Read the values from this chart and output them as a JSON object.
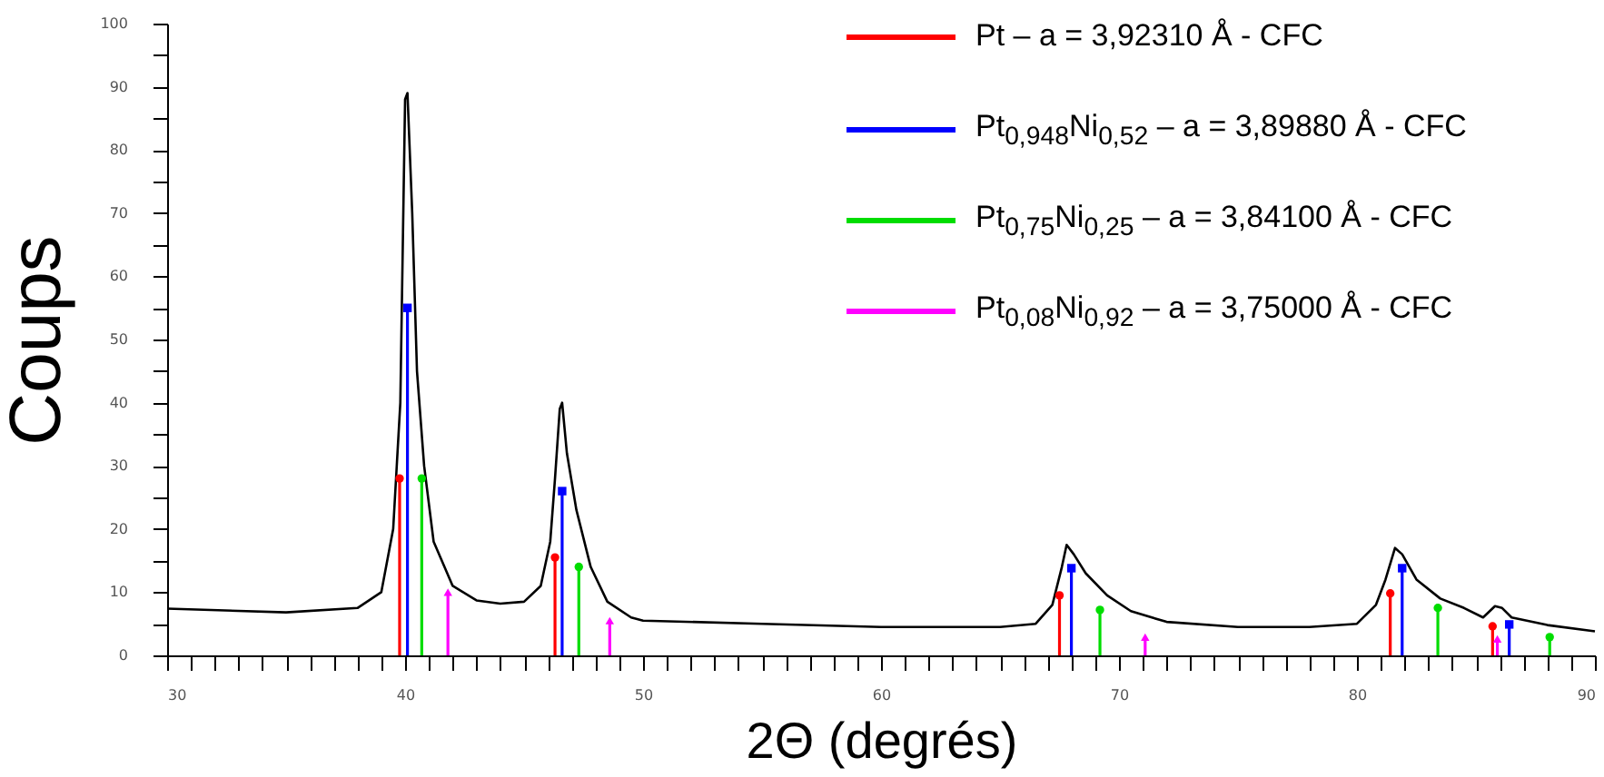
{
  "chart_data": {
    "type": "line",
    "xlabel": "2Θ (degrés)",
    "ylabel": "Coups",
    "legend": "top right",
    "grid": false,
    "xlim": [
      30,
      90
    ],
    "ylim": [
      0,
      100
    ],
    "xticks": [
      30,
      {
        "value": 31,
        "label": null
      },
      {
        "value": 32,
        "label": null
      },
      {
        "value": 33,
        "label": null
      },
      {
        "value": 34,
        "label": null
      },
      {
        "value": 35,
        "label": null
      },
      {
        "value": 36,
        "label": null
      },
      {
        "value": 37,
        "label": null
      },
      {
        "value": 38,
        "label": null
      },
      {
        "value": 39,
        "label": null
      },
      40,
      {
        "value": 41,
        "label": null
      },
      {
        "value": 42,
        "label": null
      },
      {
        "value": 43,
        "label": null
      },
      {
        "value": 44,
        "label": null
      },
      {
        "value": 45,
        "label": null
      },
      {
        "value": 46,
        "label": null
      },
      {
        "value": 47,
        "label": null
      },
      {
        "value": 48,
        "label": null
      },
      {
        "value": 49,
        "label": null
      },
      50,
      {
        "value": 51,
        "label": null
      },
      {
        "value": 52,
        "label": null
      },
      {
        "value": 53,
        "label": null
      },
      {
        "value": 54,
        "label": null
      },
      {
        "value": 55,
        "label": null
      },
      {
        "value": 56,
        "label": null
      },
      {
        "value": 57,
        "label": null
      },
      {
        "value": 58,
        "label": null
      },
      {
        "value": 59,
        "label": null
      },
      60,
      {
        "value": 61,
        "label": null
      },
      {
        "value": 62,
        "label": null
      },
      {
        "value": 63,
        "label": null
      },
      {
        "value": 64,
        "label": null
      },
      {
        "value": 65,
        "label": null
      },
      {
        "value": 66,
        "label": null
      },
      {
        "value": 67,
        "label": null
      },
      {
        "value": 68,
        "label": null
      },
      {
        "value": 69,
        "label": null
      },
      70,
      {
        "value": 71,
        "label": null
      },
      {
        "value": 72,
        "label": null
      },
      {
        "value": 73,
        "label": null
      },
      {
        "value": 74,
        "label": null
      },
      {
        "value": 75,
        "label": null
      },
      {
        "value": 76,
        "label": null
      },
      {
        "value": 77,
        "label": null
      },
      {
        "value": 78,
        "label": null
      },
      {
        "value": 79,
        "label": null
      },
      80,
      {
        "value": 81,
        "label": null
      },
      {
        "value": 82,
        "label": null
      },
      {
        "value": 83,
        "label": null
      },
      {
        "value": 84,
        "label": null
      },
      {
        "value": 85,
        "label": null
      },
      {
        "value": 86,
        "label": null
      },
      {
        "value": 87,
        "label": null
      },
      {
        "value": 88,
        "label": null
      },
      {
        "value": 89,
        "label": null
      },
      90
    ],
    "yticks": [
      0,
      {
        "value": 5,
        "label": null
      },
      10,
      {
        "value": 15,
        "label": null
      },
      20,
      {
        "value": 25,
        "label": null
      },
      30,
      {
        "value": 35,
        "label": null
      },
      40,
      {
        "value": 45,
        "label": null
      },
      50,
      {
        "value": 55,
        "label": null
      },
      60,
      {
        "value": 65,
        "label": null
      },
      70,
      {
        "value": 75,
        "label": null
      },
      80,
      {
        "value": 85,
        "label": null
      },
      90,
      {
        "value": 95,
        "label": null
      },
      100
    ],
    "series": [
      {
        "color": "#000000",
        "marker": "none",
        "line_style": "solid",
        "x": [
          30,
          35,
          38,
          39,
          39.5,
          39.8,
          40.0,
          40.1,
          40.3,
          40.5,
          40.8,
          41.2,
          42,
          43,
          44,
          45,
          45.7,
          46.1,
          46.3,
          46.5,
          46.6,
          46.8,
          47.2,
          47.8,
          48.5,
          49.5,
          50,
          55,
          60,
          65,
          66.5,
          67.2,
          67.6,
          67.8,
          68.1,
          68.6,
          69.5,
          70.5,
          72,
          75,
          78,
          80,
          80.8,
          81.2,
          81.6,
          81.9,
          82.5,
          83.5,
          84.5,
          85.3,
          85.8,
          86.1,
          86.5,
          88,
          90
        ],
        "values": [
          7.4,
          6.8,
          7.5,
          10,
          20,
          40,
          88,
          89,
          70,
          45,
          30,
          18,
          11,
          8.7,
          8.2,
          8.5,
          11,
          18,
          28,
          39,
          40,
          32,
          23,
          14,
          8.5,
          6,
          5.5,
          5,
          4.5,
          4.5,
          5,
          8,
          14,
          17.5,
          16,
          13,
          9.5,
          7,
          5.3,
          4.5,
          4.5,
          5,
          8,
          12,
          17,
          16,
          12,
          9,
          7.5,
          6,
          7.8,
          7.5,
          6,
          4.8,
          3.8
        ]
      },
      {
        "type": "lollipop",
        "name": "Pt – a = 3,92310 Å - CFC",
        "color": "#ff0000",
        "marker": "circle",
        "x": [
          39.77,
          46.3,
          67.5,
          81.4,
          85.7
        ],
        "values": [
          28,
          15.5,
          9.5,
          9.8,
          4.6
        ]
      },
      {
        "type": "lollipop",
        "name": "Pt$_{0,948}$Ni$_{0,52}$ – a = 3,89880 Å - CFC",
        "color": "#0000ff",
        "marker": "square",
        "x": [
          40.1,
          46.6,
          68.0,
          81.9,
          86.4
        ],
        "values": [
          55,
          26,
          13.8,
          13.8,
          4.9
        ]
      },
      {
        "type": "lollipop",
        "name": "Pt$_{0,75}$Ni$_{0,25}$ – a = 3,84100 Å - CFC",
        "color": "#00dd00",
        "marker": "circle",
        "x": [
          40.7,
          47.3,
          69.2,
          83.4,
          88.1
        ],
        "values": [
          28,
          14,
          7.2,
          7.5,
          2.9
        ]
      },
      {
        "type": "lollipop",
        "name": "Pt$_{0,08}$Ni$_{0,92}$ – a = 3,75000 Å - CFC",
        "color": "#ff00ff",
        "marker": "triangle",
        "x": [
          41.8,
          48.6,
          71.1,
          85.9
        ],
        "values": [
          10,
          5.5,
          2.9,
          2.6
        ]
      }
    ]
  }
}
